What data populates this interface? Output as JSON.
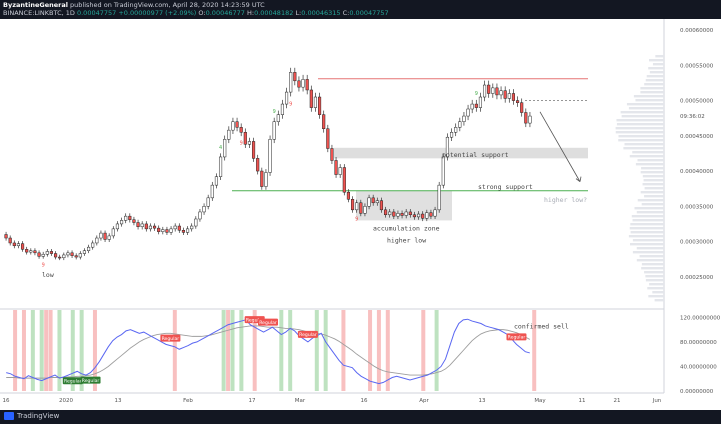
{
  "header": {
    "author": "ByzantineGeneral",
    "published_text": " published on TradingView.com, April 28, 2020 14:23:59 UTC",
    "symbol_line": "BINANCE:LINKBTC, 1D",
    "ohlc": {
      "last": "0.00047757",
      "change": "+0.00000977 (+2.09%)",
      "o_label": "O:",
      "o": "0.00046777",
      "h_label": "H:",
      "h": "0.00048182",
      "l_label": "L:",
      "l": "0.00046315",
      "c_label": "C:",
      "c": "0.00047757"
    }
  },
  "footer": {
    "brand": "TradingView"
  },
  "colors": {
    "bull": "#ffffff",
    "bear": "#ef5350",
    "support_green": "#4caf50",
    "resistance_red": "#e57373",
    "zone": "#ffffff",
    "rsi": "#5a67f2",
    "rsi_ma": "#9e9e9e",
    "annot": "#9aa0ad",
    "regular_red": "#ef5350",
    "regular_green": "#2e7d32"
  },
  "chart_data": [
    {
      "type": "candlestick",
      "y_axis_ticks": [
        "0.00060000",
        "0.00055000",
        "0.00050000",
        "0.00045000",
        "0.00040000",
        "0.00035000",
        "0.00030000",
        "0.00025000"
      ],
      "ylim": [
        0.00021,
        0.00061
      ],
      "x_axis_ticks": [
        "16",
        "2020",
        "13",
        "Feb",
        "17",
        "Mar",
        "16",
        "Apr",
        "13",
        "May",
        "11",
        "21",
        "Jun"
      ],
      "current_price_label": "09:36:02",
      "annotations": [
        "potential support",
        "strong support",
        "higher low?",
        "accumulation zone",
        "higher low",
        "low"
      ],
      "levels": {
        "resistance": 0.000531,
        "potential_support_top": 0.000433,
        "potential_support_bottom": 0.000418,
        "strong_support": 0.000372,
        "accumulation_top": 0.000372,
        "accumulation_bottom": 0.00033,
        "projection_dotted": 0.0005
      },
      "candles_approx": [
        [
          0.00031,
          0.000305
        ],
        [
          0.000305,
          0.000298
        ],
        [
          0.000298,
          0.000294
        ],
        [
          0.000294,
          0.000297
        ],
        [
          0.000297,
          0.000289
        ],
        [
          0.000289,
          0.000285
        ],
        [
          0.000285,
          0.000287
        ],
        [
          0.000287,
          0.000284
        ],
        [
          0.000284,
          0.000279
        ],
        [
          0.000279,
          0.000282
        ],
        [
          0.000282,
          0.000286
        ],
        [
          0.000286,
          0.000283
        ],
        [
          0.000283,
          0.000278
        ],
        [
          0.000278,
          0.000277
        ],
        [
          0.000277,
          0.000281
        ],
        [
          0.000281,
          0.000284
        ],
        [
          0.000284,
          0.00028
        ],
        [
          0.00028,
          0.000278
        ],
        [
          0.000278,
          0.000283
        ],
        [
          0.000283,
          0.000287
        ],
        [
          0.000287,
          0.000292
        ],
        [
          0.000292,
          0.000298
        ],
        [
          0.000298,
          0.000305
        ],
        [
          0.000305,
          0.000312
        ],
        [
          0.000312,
          0.000303
        ],
        [
          0.000303,
          0.000308
        ],
        [
          0.000308,
          0.000318
        ],
        [
          0.000318,
          0.000325
        ],
        [
          0.000325,
          0.00033
        ],
        [
          0.00033,
          0.000336
        ],
        [
          0.000336,
          0.000331
        ],
        [
          0.000331,
          0.000327
        ],
        [
          0.000327,
          0.000321
        ],
        [
          0.000321,
          0.000325
        ],
        [
          0.000325,
          0.000318
        ],
        [
          0.000318,
          0.000322
        ],
        [
          0.000322,
          0.000319
        ],
        [
          0.000319,
          0.000314
        ],
        [
          0.000314,
          0.000317
        ],
        [
          0.000317,
          0.000313
        ],
        [
          0.000313,
          0.000318
        ],
        [
          0.000318,
          0.000322
        ],
        [
          0.000322,
          0.000316
        ],
        [
          0.000316,
          0.000313
        ],
        [
          0.000313,
          0.000318
        ],
        [
          0.000318,
          0.000322
        ],
        [
          0.000322,
          0.000332
        ],
        [
          0.000332,
          0.000342
        ],
        [
          0.000342,
          0.00035
        ],
        [
          0.00035,
          0.000362
        ],
        [
          0.000362,
          0.00038
        ],
        [
          0.00038,
          0.000392
        ],
        [
          0.000392,
          0.00042
        ],
        [
          0.00042,
          0.000445
        ],
        [
          0.000445,
          0.000458
        ],
        [
          0.000458,
          0.00047
        ],
        [
          0.00047,
          0.000462
        ],
        [
          0.000462,
          0.000455
        ],
        [
          0.000455,
          0.000438
        ],
        [
          0.000438,
          0.000442
        ],
        [
          0.000442,
          0.000418
        ],
        [
          0.000418,
          0.0004
        ],
        [
          0.0004,
          0.000378
        ],
        [
          0.000378,
          0.000398
        ],
        [
          0.000398,
          0.000445
        ],
        [
          0.000445,
          0.00047
        ],
        [
          0.00047,
          0.00048
        ],
        [
          0.00048,
          0.000495
        ],
        [
          0.000495,
          0.000512
        ],
        [
          0.000512,
          0.00054
        ],
        [
          0.00054,
          0.000528
        ],
        [
          0.000528,
          0.000519
        ],
        [
          0.000519,
          0.00053
        ],
        [
          0.00053,
          0.000515
        ],
        [
          0.000515,
          0.00049
        ],
        [
          0.00049,
          0.000505
        ],
        [
          0.000505,
          0.00048
        ],
        [
          0.00048,
          0.00046
        ],
        [
          0.00046,
          0.000432
        ],
        [
          0.000432,
          0.000415
        ],
        [
          0.000415,
          0.000395
        ],
        [
          0.000395,
          0.000405
        ],
        [
          0.000405,
          0.00037
        ],
        [
          0.00037,
          0.00036
        ],
        [
          0.00036,
          0.000345
        ],
        [
          0.000345,
          0.000355
        ],
        [
          0.000355,
          0.00034
        ],
        [
          0.00034,
          0.00035
        ],
        [
          0.00035,
          0.000362
        ],
        [
          0.000362,
          0.000355
        ],
        [
          0.000355,
          0.000358
        ],
        [
          0.000358,
          0.000345
        ],
        [
          0.000345,
          0.000338
        ],
        [
          0.000338,
          0.000342
        ],
        [
          0.000342,
          0.000336
        ],
        [
          0.000336,
          0.00034
        ],
        [
          0.00034,
          0.000337
        ],
        [
          0.000337,
          0.000342
        ],
        [
          0.000342,
          0.000338
        ],
        [
          0.000338,
          0.000335
        ],
        [
          0.000335,
          0.000339
        ],
        [
          0.000339,
          0.000333
        ],
        [
          0.000333,
          0.000341
        ],
        [
          0.000341,
          0.000336
        ],
        [
          0.000336,
          0.000345
        ],
        [
          0.000345,
          0.00038
        ],
        [
          0.00038,
          0.00042
        ],
        [
          0.00042,
          0.000448
        ],
        [
          0.000448,
          0.000455
        ],
        [
          0.000455,
          0.000462
        ],
        [
          0.000462,
          0.00047
        ],
        [
          0.00047,
          0.000478
        ],
        [
          0.000478,
          0.000488
        ],
        [
          0.000488,
          0.000495
        ],
        [
          0.000495,
          0.00049
        ],
        [
          0.00049,
          0.000505
        ],
        [
          0.000505,
          0.000522
        ],
        [
          0.000522,
          0.00051
        ],
        [
          0.00051,
          0.000518
        ],
        [
          0.000518,
          0.000508
        ],
        [
          0.000508,
          0.000514
        ],
        [
          0.000514,
          0.000503
        ],
        [
          0.000503,
          0.00051
        ],
        [
          0.00051,
          0.0005
        ],
        [
          0.0005,
          0.000497
        ],
        [
          0.000497,
          0.000483
        ],
        [
          0.000483,
          0.000468
        ],
        [
          0.000468,
          0.000478
        ]
      ],
      "signals": [
        {
          "index": 52,
          "label": "4",
          "color": "green"
        },
        {
          "index": 57,
          "label": "9",
          "color": "red"
        },
        {
          "index": 69,
          "label": "9",
          "color": "red"
        },
        {
          "index": 65,
          "label": "9",
          "color": "green"
        },
        {
          "index": 85,
          "label": "9",
          "color": "red"
        },
        {
          "index": 114,
          "label": "9",
          "color": "green"
        },
        {
          "index": 9,
          "label": "9",
          "color": "red"
        }
      ]
    },
    {
      "type": "line",
      "title": "",
      "y_axis_ticks": [
        "120.00000000",
        "80.00000000",
        "40.00000000",
        "0.00000000"
      ],
      "ylim": [
        0,
        132
      ],
      "annotation": "confirmed sell",
      "badge_label": "Regular",
      "series_rsi": [
        30,
        28,
        24,
        22,
        20,
        25,
        22,
        19,
        17,
        20,
        23,
        26,
        21,
        23,
        26,
        29,
        32,
        28,
        26,
        30,
        38,
        48,
        60,
        72,
        82,
        88,
        92,
        98,
        100,
        97,
        94,
        96,
        92,
        88,
        84,
        80,
        76,
        74,
        72,
        68,
        71,
        74,
        78,
        80,
        84,
        88,
        92,
        96,
        100,
        104,
        108,
        110,
        112,
        114,
        116,
        108,
        104,
        100,
        96,
        100,
        104,
        98,
        92,
        96,
        102,
        98,
        90,
        85,
        80,
        86,
        90,
        94,
        80,
        70,
        60,
        50,
        42,
        40,
        38,
        30,
        24,
        20,
        16,
        14,
        12,
        14,
        18,
        22,
        24,
        22,
        20,
        18,
        20,
        22,
        24,
        26,
        30,
        34,
        40,
        52,
        74,
        96,
        110,
        116,
        117,
        114,
        112,
        110,
        106,
        104,
        102,
        100,
        96,
        92,
        84,
        76,
        70,
        64,
        62
      ],
      "series_ma": [
        22,
        22,
        22,
        21,
        21,
        21,
        21,
        21,
        21,
        21,
        22,
        22,
        22,
        22,
        23,
        23,
        24,
        24,
        25,
        26,
        28,
        31,
        35,
        40,
        46,
        52,
        58,
        64,
        70,
        75,
        80,
        84,
        87,
        90,
        92,
        93,
        94,
        94,
        93,
        92,
        91,
        90,
        89,
        89,
        89,
        90,
        91,
        93,
        95,
        97,
        99,
        101,
        103,
        104,
        105,
        106,
        106,
        106,
        105,
        104,
        104,
        104,
        103,
        102,
        102,
        101,
        100,
        98,
        96,
        95,
        94,
        93,
        91,
        88,
        85,
        81,
        76,
        71,
        66,
        60,
        55,
        50,
        45,
        40,
        36,
        33,
        31,
        30,
        29,
        28,
        27,
        26,
        26,
        26,
        26,
        27,
        28,
        30,
        32,
        36,
        42,
        50,
        58,
        66,
        74,
        82,
        88,
        93,
        96,
        98,
        99,
        100,
        100,
        99,
        97,
        95,
        92,
        88,
        84
      ],
      "bands_red": [
        2,
        4,
        9,
        10,
        20,
        38,
        50,
        56,
        76,
        82,
        84,
        86,
        94,
        119
      ],
      "bands_green": [
        6,
        8,
        12,
        15,
        17,
        49,
        51,
        53,
        62,
        64,
        70,
        72,
        97
      ],
      "badges": [
        {
          "index": 15,
          "color": "green",
          "label": "Regular"
        },
        {
          "index": 19,
          "color": "green",
          "label": "Regular"
        },
        {
          "index": 37,
          "color": "red",
          "label": "Regular"
        },
        {
          "index": 56,
          "color": "red",
          "label": "Regular"
        },
        {
          "index": 59,
          "color": "red",
          "label": "Regular"
        },
        {
          "index": 68,
          "color": "red",
          "label": "Regular"
        },
        {
          "index": 115,
          "color": "red",
          "label": "Regular"
        }
      ]
    }
  ]
}
